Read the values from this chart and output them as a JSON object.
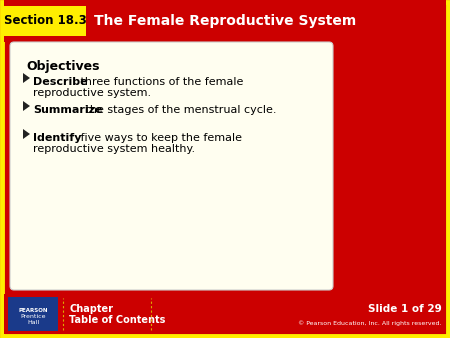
{
  "title": "The Female Reproductive System",
  "section_label": "Section 18.3",
  "bg_color": "#cc0000",
  "border_color": "#ffee00",
  "section_box_color": "#ffee00",
  "title_color": "#ffffff",
  "content_bg": "#fffef0",
  "content_border": "#cccccc",
  "objectives_title": "Objectives",
  "bullet_items": [
    {
      "bold": "Describe",
      "rest": " three functions of the female\nreproductive system."
    },
    {
      "bold": "Summarize",
      "rest": " the stages of the menstrual cycle."
    },
    {
      "bold": "Identify",
      "rest": " five ways to keep the female\nreproductive system healthy."
    }
  ],
  "footer_bg": "#cc0000",
  "footer_left1": "Chapter",
  "footer_left2": "Table of Contents",
  "footer_right1": "Slide 1 of 29",
  "footer_right2": "© Pearson Education, Inc. All rights reserved.",
  "footer_text_color": "#ffffff",
  "pearson_box_color": "#1a3a8a",
  "pearson_line1": "PEARSON",
  "pearson_line2": "Prentice",
  "pearson_line3": "Hall"
}
